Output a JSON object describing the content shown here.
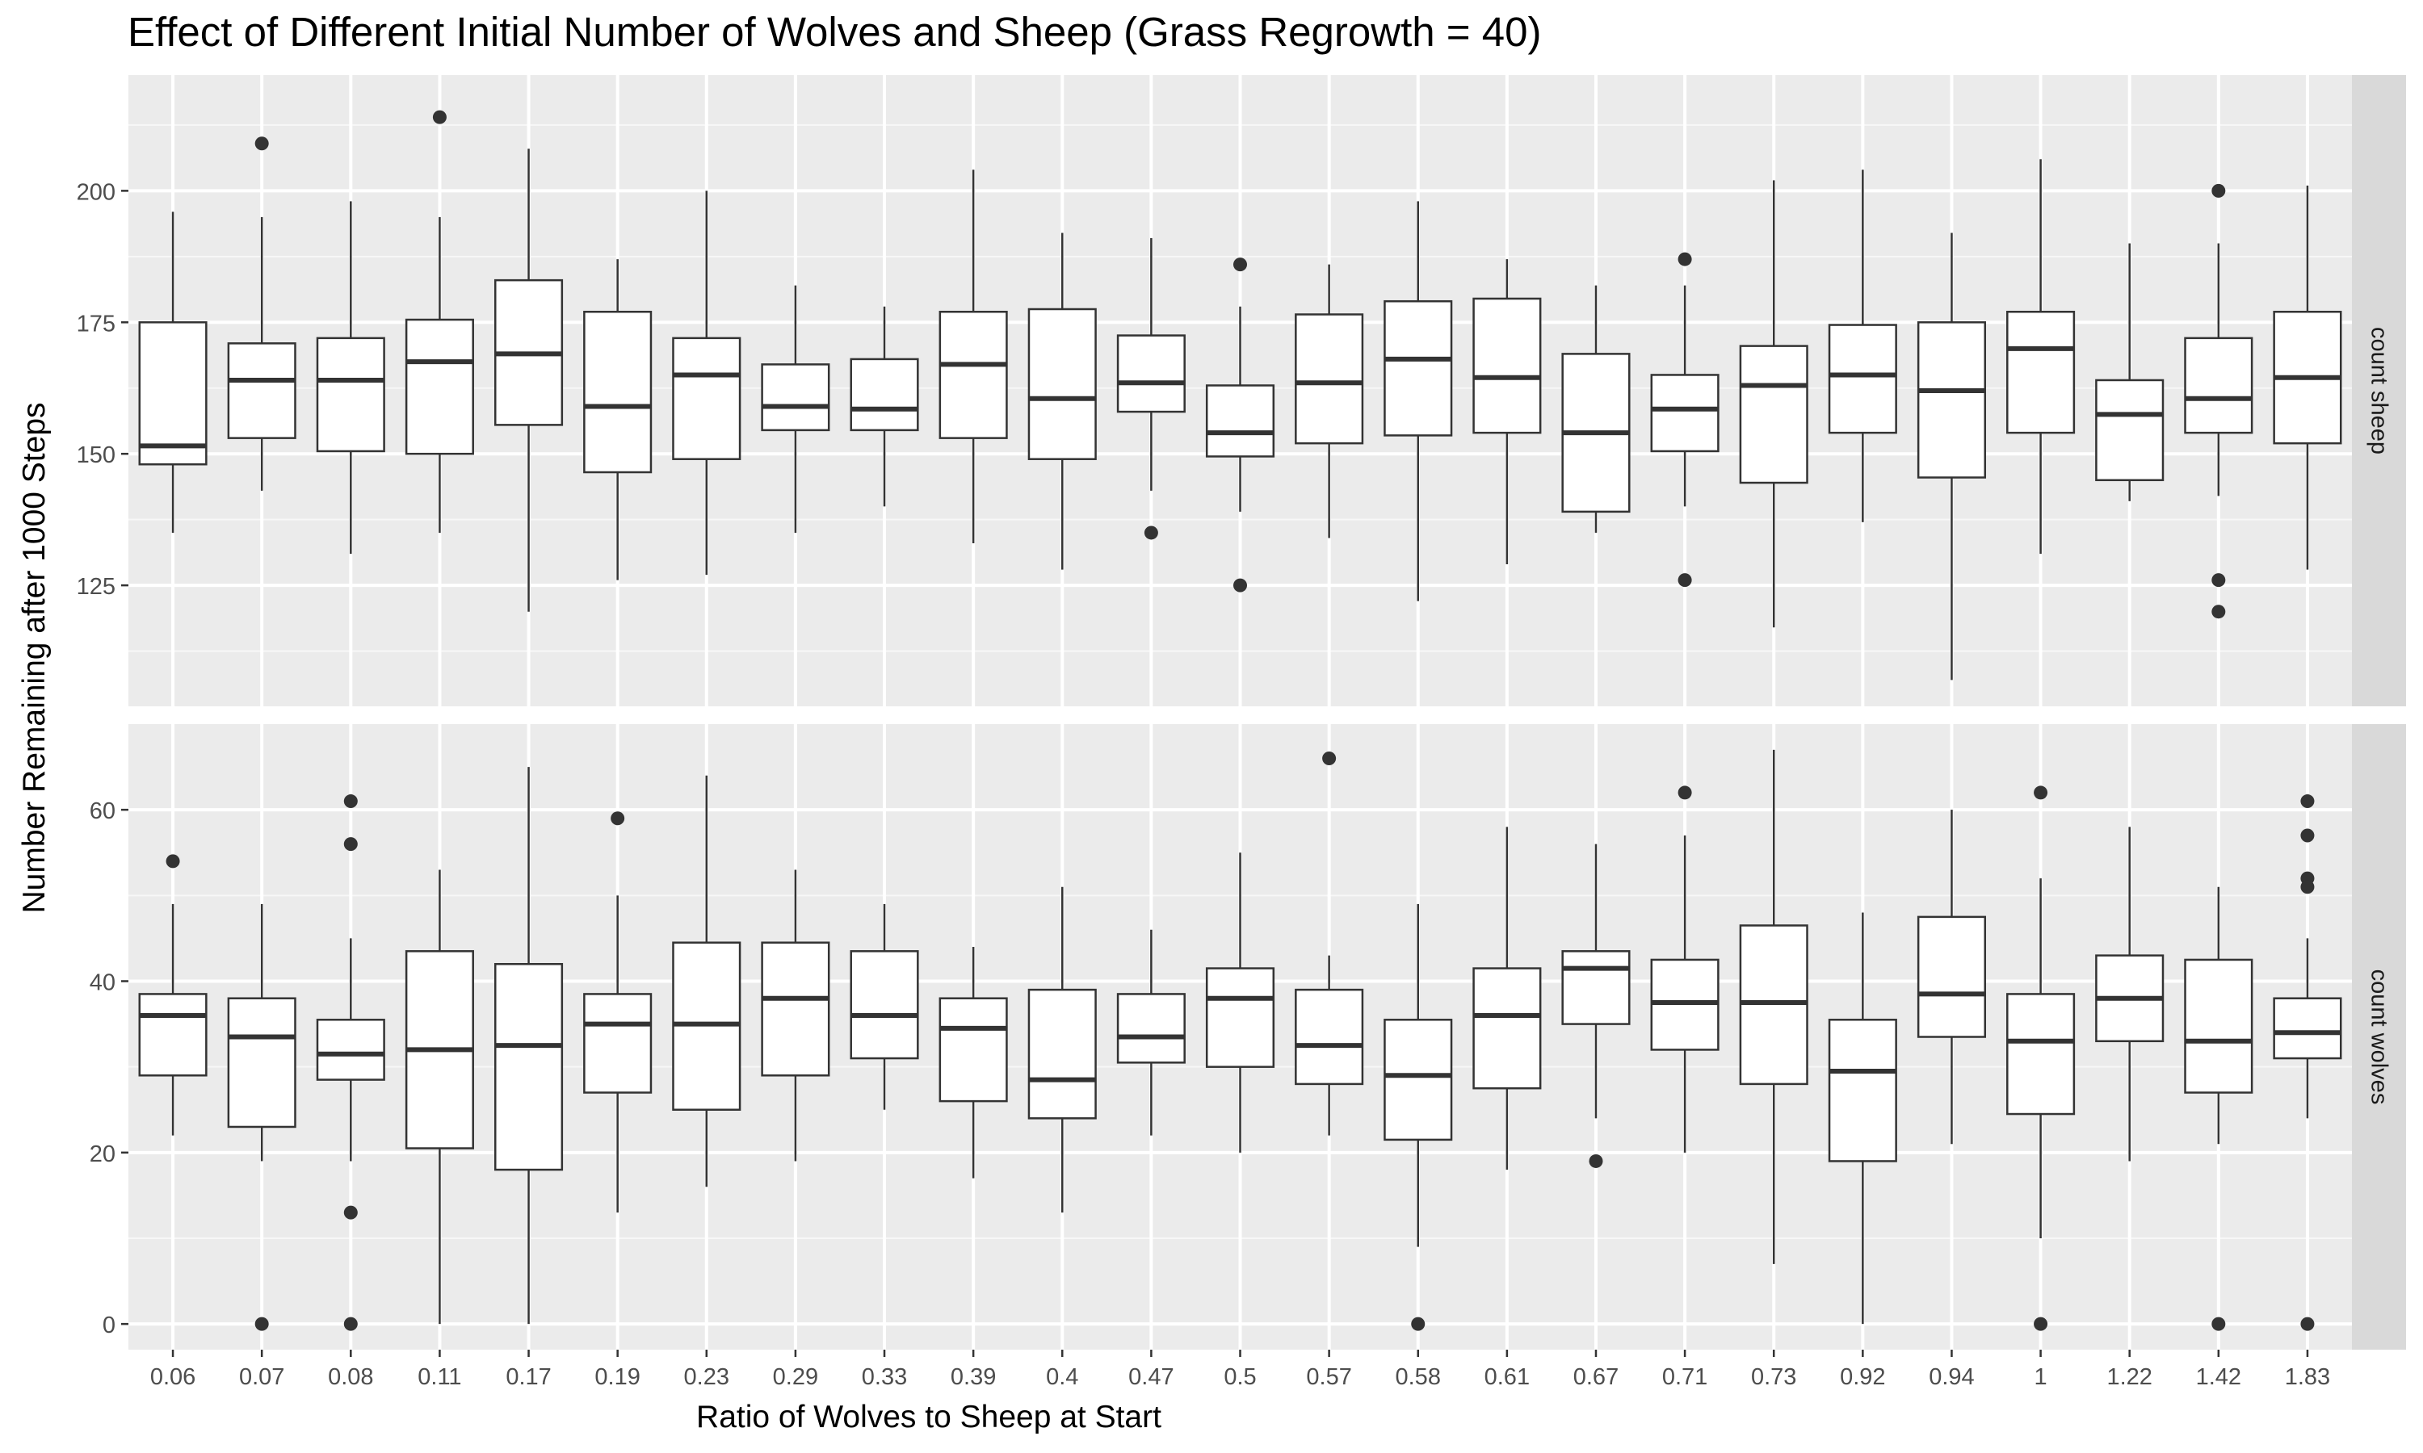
{
  "chart_data": {
    "type": "box",
    "title": "Effect of Different Initial Number of Wolves and Sheep (Grass Regrowth = 40)",
    "xlabel": "Ratio of Wolves to Sheep at Start",
    "ylabel": "Number Remaining after 1000 Steps",
    "categories": [
      "0.06",
      "0.07",
      "0.08",
      "0.11",
      "0.17",
      "0.19",
      "0.23",
      "0.29",
      "0.33",
      "0.39",
      "0.4",
      "0.47",
      "0.5",
      "0.57",
      "0.58",
      "0.61",
      "0.67",
      "0.71",
      "0.73",
      "0.92",
      "0.94",
      "1",
      "1.22",
      "1.42",
      "1.83"
    ],
    "grid": true,
    "facets": [
      {
        "strip_label": "count sheep",
        "ylim": [
          102,
          222
        ],
        "yticks": [
          125,
          150,
          175,
          200
        ],
        "boxes": [
          {
            "whisker_low": 135,
            "q1": 148,
            "median": 151.5,
            "q3": 175,
            "whisker_high": 196,
            "outliers": []
          },
          {
            "whisker_low": 143,
            "q1": 153,
            "median": 164,
            "q3": 171,
            "whisker_high": 195,
            "outliers": [
              209
            ]
          },
          {
            "whisker_low": 131,
            "q1": 150.5,
            "median": 164,
            "q3": 172,
            "whisker_high": 198,
            "outliers": []
          },
          {
            "whisker_low": 135,
            "q1": 150,
            "median": 167.5,
            "q3": 175.5,
            "whisker_high": 195,
            "outliers": [
              214
            ]
          },
          {
            "whisker_low": 120,
            "q1": 155.5,
            "median": 169,
            "q3": 183,
            "whisker_high": 208,
            "outliers": []
          },
          {
            "whisker_low": 126,
            "q1": 146.5,
            "median": 159,
            "q3": 177,
            "whisker_high": 187,
            "outliers": []
          },
          {
            "whisker_low": 127,
            "q1": 149,
            "median": 165,
            "q3": 172,
            "whisker_high": 200,
            "outliers": []
          },
          {
            "whisker_low": 135,
            "q1": 154.5,
            "median": 159,
            "q3": 167,
            "whisker_high": 182,
            "outliers": []
          },
          {
            "whisker_low": 140,
            "q1": 154.5,
            "median": 158.5,
            "q3": 168,
            "whisker_high": 178,
            "outliers": []
          },
          {
            "whisker_low": 133,
            "q1": 153,
            "median": 167,
            "q3": 177,
            "whisker_high": 204,
            "outliers": []
          },
          {
            "whisker_low": 128,
            "q1": 149,
            "median": 160.5,
            "q3": 177.5,
            "whisker_high": 192,
            "outliers": []
          },
          {
            "whisker_low": 143,
            "q1": 158,
            "median": 163.5,
            "q3": 172.5,
            "whisker_high": 191,
            "outliers": [
              135
            ]
          },
          {
            "whisker_low": 139,
            "q1": 149.5,
            "median": 154,
            "q3": 163,
            "whisker_high": 178,
            "outliers": [
              186,
              125
            ]
          },
          {
            "whisker_low": 134,
            "q1": 152,
            "median": 163.5,
            "q3": 176.5,
            "whisker_high": 186,
            "outliers": []
          },
          {
            "whisker_low": 122,
            "q1": 153.5,
            "median": 168,
            "q3": 179,
            "whisker_high": 198,
            "outliers": []
          },
          {
            "whisker_low": 129,
            "q1": 154,
            "median": 164.5,
            "q3": 179.5,
            "whisker_high": 187,
            "outliers": []
          },
          {
            "whisker_low": 135,
            "q1": 139,
            "median": 154,
            "q3": 169,
            "whisker_high": 182,
            "outliers": []
          },
          {
            "whisker_low": 140,
            "q1": 150.5,
            "median": 158.5,
            "q3": 165,
            "whisker_high": 182,
            "outliers": [
              187,
              126
            ]
          },
          {
            "whisker_low": 117,
            "q1": 144.5,
            "median": 163,
            "q3": 170.5,
            "whisker_high": 202,
            "outliers": []
          },
          {
            "whisker_low": 137,
            "q1": 154,
            "median": 165,
            "q3": 174.5,
            "whisker_high": 204,
            "outliers": []
          },
          {
            "whisker_low": 107,
            "q1": 145.5,
            "median": 162,
            "q3": 175,
            "whisker_high": 192,
            "outliers": []
          },
          {
            "whisker_low": 131,
            "q1": 154,
            "median": 170,
            "q3": 177,
            "whisker_high": 206,
            "outliers": []
          },
          {
            "whisker_low": 141,
            "q1": 145,
            "median": 157.5,
            "q3": 164,
            "whisker_high": 190,
            "outliers": []
          },
          {
            "whisker_low": 142,
            "q1": 154,
            "median": 160.5,
            "q3": 172,
            "whisker_high": 190,
            "outliers": [
              200,
              126,
              120
            ]
          },
          {
            "whisker_low": 128,
            "q1": 152,
            "median": 164.5,
            "q3": 177,
            "whisker_high": 201,
            "outliers": []
          }
        ]
      },
      {
        "strip_label": "count wolves",
        "ylim": [
          -3,
          70
        ],
        "yticks": [
          0,
          20,
          40,
          60
        ],
        "boxes": [
          {
            "whisker_low": 22,
            "q1": 29,
            "median": 36,
            "q3": 38.5,
            "whisker_high": 49,
            "outliers": [
              54
            ]
          },
          {
            "whisker_low": 19,
            "q1": 23,
            "median": 33.5,
            "q3": 38,
            "whisker_high": 49,
            "outliers": [
              0
            ]
          },
          {
            "whisker_low": 19,
            "q1": 28.5,
            "median": 31.5,
            "q3": 35.5,
            "whisker_high": 45,
            "outliers": [
              61,
              56,
              13,
              0
            ]
          },
          {
            "whisker_low": 0,
            "q1": 20.5,
            "median": 32,
            "q3": 43.5,
            "whisker_high": 53,
            "outliers": []
          },
          {
            "whisker_low": 0,
            "q1": 18,
            "median": 32.5,
            "q3": 42,
            "whisker_high": 65,
            "outliers": []
          },
          {
            "whisker_low": 13,
            "q1": 27,
            "median": 35,
            "q3": 38.5,
            "whisker_high": 50,
            "outliers": [
              59
            ]
          },
          {
            "whisker_low": 16,
            "q1": 25,
            "median": 35,
            "q3": 44.5,
            "whisker_high": 64,
            "outliers": []
          },
          {
            "whisker_low": 19,
            "q1": 29,
            "median": 38,
            "q3": 44.5,
            "whisker_high": 53,
            "outliers": []
          },
          {
            "whisker_low": 25,
            "q1": 31,
            "median": 36,
            "q3": 43.5,
            "whisker_high": 49,
            "outliers": []
          },
          {
            "whisker_low": 17,
            "q1": 26,
            "median": 34.5,
            "q3": 38,
            "whisker_high": 44,
            "outliers": []
          },
          {
            "whisker_low": 13,
            "q1": 24,
            "median": 28.5,
            "q3": 39,
            "whisker_high": 51,
            "outliers": []
          },
          {
            "whisker_low": 22,
            "q1": 30.5,
            "median": 33.5,
            "q3": 38.5,
            "whisker_high": 46,
            "outliers": []
          },
          {
            "whisker_low": 20,
            "q1": 30,
            "median": 38,
            "q3": 41.5,
            "whisker_high": 55,
            "outliers": []
          },
          {
            "whisker_low": 22,
            "q1": 28,
            "median": 32.5,
            "q3": 39,
            "whisker_high": 43,
            "outliers": [
              66
            ]
          },
          {
            "whisker_low": 9,
            "q1": 21.5,
            "median": 29,
            "q3": 35.5,
            "whisker_high": 49,
            "outliers": [
              0
            ]
          },
          {
            "whisker_low": 18,
            "q1": 27.5,
            "median": 36,
            "q3": 41.5,
            "whisker_high": 58,
            "outliers": []
          },
          {
            "whisker_low": 24,
            "q1": 35,
            "median": 41.5,
            "q3": 43.5,
            "whisker_high": 56,
            "outliers": [
              19
            ]
          },
          {
            "whisker_low": 20,
            "q1": 32,
            "median": 37.5,
            "q3": 42.5,
            "whisker_high": 57,
            "outliers": [
              62
            ]
          },
          {
            "whisker_low": 7,
            "q1": 28,
            "median": 37.5,
            "q3": 46.5,
            "whisker_high": 67,
            "outliers": []
          },
          {
            "whisker_low": 0,
            "q1": 19,
            "median": 29.5,
            "q3": 35.5,
            "whisker_high": 48,
            "outliers": []
          },
          {
            "whisker_low": 21,
            "q1": 33.5,
            "median": 38.5,
            "q3": 47.5,
            "whisker_high": 60,
            "outliers": []
          },
          {
            "whisker_low": 10,
            "q1": 24.5,
            "median": 33,
            "q3": 38.5,
            "whisker_high": 52,
            "outliers": [
              62,
              0
            ]
          },
          {
            "whisker_low": 19,
            "q1": 33,
            "median": 38,
            "q3": 43,
            "whisker_high": 58,
            "outliers": []
          },
          {
            "whisker_low": 21,
            "q1": 27,
            "median": 33,
            "q3": 42.5,
            "whisker_high": 51,
            "outliers": [
              0
            ]
          },
          {
            "whisker_low": 24,
            "q1": 31,
            "median": 34,
            "q3": 38,
            "whisker_high": 45,
            "outliers": [
              61,
              57,
              52,
              51,
              0
            ]
          }
        ]
      }
    ]
  }
}
